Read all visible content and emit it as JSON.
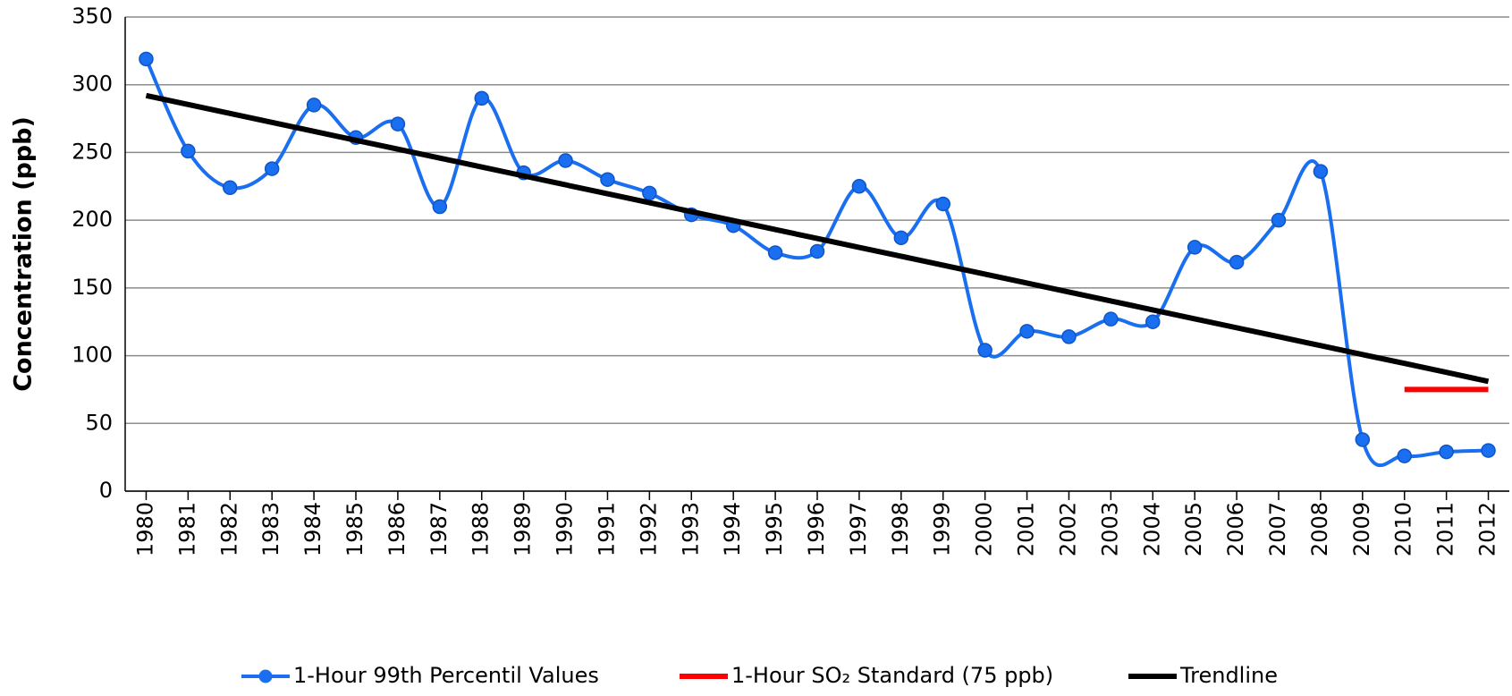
{
  "chart_data": {
    "type": "line",
    "y_label": "Concentration (ppb)",
    "categories": [
      "1980",
      "1981",
      "1982",
      "1983",
      "1984",
      "1985",
      "1986",
      "1987",
      "1988",
      "1989",
      "1990",
      "1991",
      "1992",
      "1993",
      "1994",
      "1995",
      "1996",
      "1997",
      "1998",
      "1999",
      "2000",
      "2001",
      "2002",
      "2003",
      "2004",
      "2005",
      "2006",
      "2007",
      "2008",
      "2009",
      "2010",
      "2011",
      "2012"
    ],
    "series": [
      {
        "name": "1-Hour 99th Percentil Values",
        "color": "#1a6ff0",
        "smooth": true,
        "markers": true,
        "values": [
          319,
          251,
          224,
          238,
          285,
          261,
          271,
          210,
          290,
          235,
          244,
          230,
          220,
          204,
          196,
          176,
          177,
          225,
          187,
          212,
          104,
          118,
          114,
          127,
          125,
          180,
          169,
          200,
          236,
          38,
          26,
          29,
          30
        ]
      },
      {
        "name": "1-Hour SO₂ Standard (75 ppb)",
        "color": "#ff0000",
        "smooth": false,
        "markers": false,
        "values": [
          null,
          null,
          null,
          null,
          null,
          null,
          null,
          null,
          null,
          null,
          null,
          null,
          null,
          null,
          null,
          null,
          null,
          null,
          null,
          null,
          null,
          null,
          null,
          null,
          null,
          null,
          null,
          null,
          null,
          null,
          75,
          75,
          75
        ]
      },
      {
        "name": "Trendline",
        "color": "#000000",
        "smooth": false,
        "markers": false,
        "values": [
          292,
          285.4,
          278.8,
          272.2,
          265.6,
          259.0,
          252.5,
          245.9,
          239.3,
          232.7,
          226.1,
          219.5,
          212.9,
          206.3,
          199.7,
          193.1,
          186.5,
          179.9,
          173.4,
          166.8,
          160.2,
          153.6,
          147.0,
          140.4,
          133.8,
          127.2,
          120.6,
          114.0,
          107.4,
          100.8,
          94.3,
          87.7,
          81
        ]
      }
    ],
    "ylim": [
      0,
      350
    ],
    "yticks": [
      0,
      50,
      100,
      150,
      200,
      250,
      300,
      350
    ],
    "grid": true,
    "legend": "bottom"
  }
}
